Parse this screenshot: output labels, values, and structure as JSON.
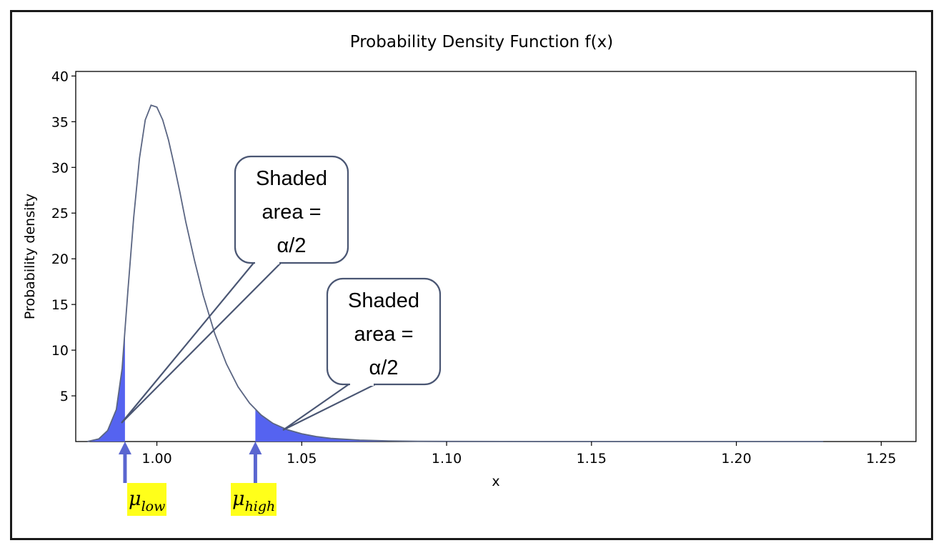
{
  "chart_data": {
    "type": "line",
    "title": "Probability Density Function f(x)",
    "xlabel": "x",
    "ylabel": "Probability density",
    "xlim": [
      0.972,
      1.262
    ],
    "ylim": [
      0,
      40.5
    ],
    "xticks": [
      1.0,
      1.05,
      1.1,
      1.15,
      1.2,
      1.25
    ],
    "xtick_labels": [
      "1.00",
      "1.05",
      "1.10",
      "1.15",
      "1.20",
      "1.25"
    ],
    "yticks": [
      5,
      10,
      15,
      20,
      25,
      30,
      35,
      40
    ],
    "ytick_labels": [
      "5",
      "10",
      "15",
      "20",
      "25",
      "30",
      "35",
      "40"
    ],
    "grid": false,
    "series": [
      {
        "x": [
          0.976,
          0.98,
          0.983,
          0.986,
          0.988,
          0.99,
          0.992,
          0.994,
          0.996,
          0.998,
          1.0,
          1.002,
          1.004,
          1.006,
          1.008,
          1.01,
          1.013,
          1.016,
          1.02,
          1.024,
          1.028,
          1.032,
          1.036,
          1.04,
          1.045,
          1.05,
          1.055,
          1.06,
          1.07,
          1.08,
          1.09,
          1.1,
          1.12,
          1.14,
          1.16,
          1.18,
          1.2,
          1.23
        ],
        "y": [
          0.0,
          0.3,
          1.2,
          3.5,
          8.0,
          16.5,
          24.5,
          31.0,
          35.2,
          36.8,
          36.6,
          35.2,
          33.0,
          30.2,
          27.2,
          24.0,
          19.8,
          16.0,
          11.8,
          8.5,
          6.0,
          4.2,
          2.9,
          2.0,
          1.3,
          0.85,
          0.55,
          0.35,
          0.16,
          0.07,
          0.03,
          0.015,
          0.005,
          0.002,
          0.001,
          0.0,
          0.0,
          0.0
        ],
        "color": "#5a6582"
      }
    ],
    "shaded_regions": [
      {
        "x_from": 0.976,
        "x_to": 0.989,
        "color": "#5563f0"
      },
      {
        "x_from": 1.034,
        "x_to": 1.262,
        "color": "#5563f0"
      }
    ],
    "markers": [
      {
        "x": 0.989,
        "label_main": "μ",
        "label_sub": "low",
        "highlight": "#ffff1a",
        "arrow_color": "#5a66d0"
      },
      {
        "x": 1.034,
        "label_main": "μ",
        "label_sub": "high",
        "highlight": "#ffff1a",
        "arrow_color": "#5a66d0"
      }
    ],
    "annotations": [
      {
        "lines": [
          "Shaded",
          "area =",
          "α/2"
        ]
      },
      {
        "lines": [
          "Shaded",
          "area =",
          "α/2"
        ]
      }
    ]
  }
}
